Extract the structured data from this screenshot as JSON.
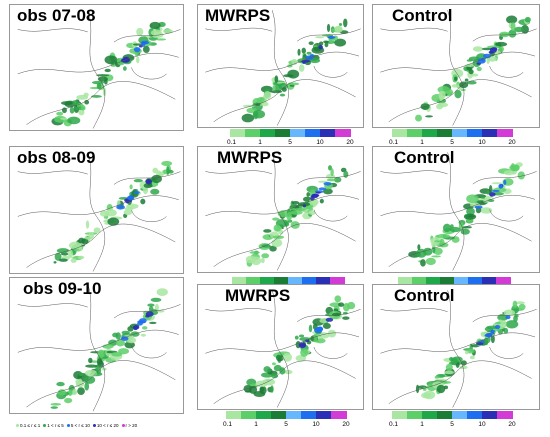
{
  "rows": [
    {
      "panels": [
        {
          "title": "obs 07-08"
        },
        {
          "title": "MWRPS"
        },
        {
          "title": "Control"
        }
      ]
    },
    {
      "panels": [
        {
          "title": "obs 08-09"
        },
        {
          "title": "MWRPS"
        },
        {
          "title": "Control"
        }
      ]
    },
    {
      "panels": [
        {
          "title": "obs 09-10"
        },
        {
          "title": "MWRPS"
        },
        {
          "title": "Control"
        }
      ]
    }
  ],
  "colorbar": {
    "ticks": [
      "0.1",
      "1",
      "5",
      "10",
      "20"
    ],
    "colors": [
      "#a8e6a1",
      "#5dcf68",
      "#1fa84a",
      "#1b7d35",
      "#67b7ff",
      "#1e6ff0",
      "#2b2fb5",
      "#d23bd6"
    ]
  },
  "obs_legend": {
    "items": [
      "0.1 ≤ r ≤ 1",
      "1 < r ≤ 5",
      "5 < r ≤ 10",
      "10 < r ≤ 20",
      "r > 20"
    ],
    "colors": [
      "#a8e6a1",
      "#2ea84a",
      "#1e6ff0",
      "#2b2fb5",
      "#d23bd6"
    ]
  }
}
